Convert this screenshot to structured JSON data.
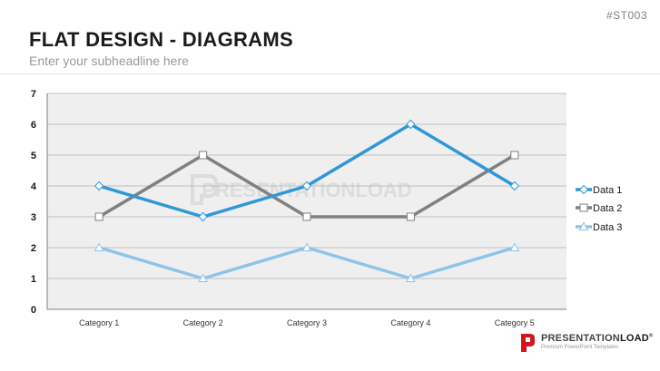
{
  "slide": {
    "code": "#ST003",
    "title": "FLAT DESIGN - DIAGRAMS",
    "subtitle": "Enter your subheadline here"
  },
  "watermark": {
    "text": "PRESENTATIONLOAD"
  },
  "brand": {
    "name_light": "PRESENTATION",
    "name_bold": "LOAD",
    "registered": "®",
    "tagline": "Premium PowerPoint Templates"
  },
  "colors": {
    "plot_background": "#efefef",
    "gridline": "#bfbfbf",
    "data1": "#2f97d6",
    "data2": "#808080",
    "data3": "#8fc4e8",
    "brand_red": "#d0161d"
  },
  "chart_data": {
    "type": "line",
    "categories": [
      "Category 1",
      "Category 2",
      "Category 3",
      "Category 4",
      "Category 5"
    ],
    "ylim": [
      0,
      7
    ],
    "yticks": [
      0,
      1,
      2,
      3,
      4,
      5,
      6,
      7
    ],
    "grid": true,
    "legend_position": "right",
    "series": [
      {
        "name": "Data 1",
        "values": [
          4,
          3,
          4,
          6,
          4
        ],
        "color": "#2f97d6",
        "marker": "diamond"
      },
      {
        "name": "Data 2",
        "values": [
          3,
          5,
          3,
          3,
          5
        ],
        "color": "#808080",
        "marker": "square"
      },
      {
        "name": "Data 3",
        "values": [
          2,
          1,
          2,
          1,
          2
        ],
        "color": "#8fc4e8",
        "marker": "triangle"
      }
    ]
  }
}
